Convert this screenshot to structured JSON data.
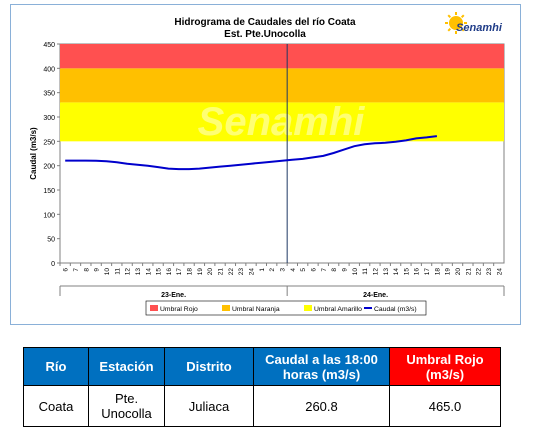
{
  "chart_data": {
    "type": "line",
    "title": "Hidrograma de Caudales del río Coata",
    "subtitle": "Est. Pte.Unocolla",
    "ylabel": "Caudal  (m3/s)",
    "ylim": [
      0,
      450
    ],
    "yticks": [
      0,
      50,
      100,
      150,
      200,
      250,
      300,
      350,
      400,
      450
    ],
    "xticks": [
      "6",
      "7",
      "8",
      "9",
      "10",
      "11",
      "12",
      "13",
      "14",
      "15",
      "16",
      "17",
      "18",
      "19",
      "20",
      "21",
      "22",
      "23",
      "24",
      "1",
      "2",
      "3",
      "4",
      "5",
      "6",
      "7",
      "8",
      "9",
      "10",
      "11",
      "12",
      "13",
      "14",
      "15",
      "16",
      "17",
      "18",
      "19",
      "20",
      "21",
      "22",
      "23",
      "24"
    ],
    "day_labels": [
      "23-Ene.",
      "24-Ene."
    ],
    "thresholds": [
      {
        "name": "Umbral Amarillo",
        "from": 250,
        "to": 330,
        "color": "#ffff00"
      },
      {
        "name": "Umbral Naranja",
        "from": 330,
        "to": 400,
        "color": "#ffc000"
      },
      {
        "name": "Umbral Rojo",
        "from": 400,
        "to": 465,
        "color": "#ff5050"
      }
    ],
    "series": [
      {
        "name": "Caudal (m3/s)",
        "color": "#0000cc",
        "values": [
          210.5,
          210.5,
          210.5,
          210,
          209,
          207,
          204,
          202,
          200,
          197,
          194,
          193,
          193,
          194,
          196,
          198,
          200,
          202,
          204,
          206,
          208,
          210,
          212,
          214,
          217,
          220,
          226,
          233,
          240,
          244,
          246,
          247,
          249,
          252,
          256,
          258,
          260.8
        ]
      }
    ],
    "legend": [
      "Umbral Rojo",
      "Umbral Naranja",
      "Umbral Amarillo",
      "Caudal (m3/s)"
    ],
    "legend_position": "bottom",
    "watermark": "Senamhi",
    "logo_text": "Senamhi"
  },
  "table": {
    "headers": [
      "Río",
      "Estación",
      "Distrito",
      "Caudal a las 18:00 horas (m3/s)",
      "Umbral Rojo (m3/s)"
    ],
    "row": [
      "Coata",
      "Pte. Unocolla",
      "Juliaca",
      "260.8",
      "465.0"
    ]
  }
}
